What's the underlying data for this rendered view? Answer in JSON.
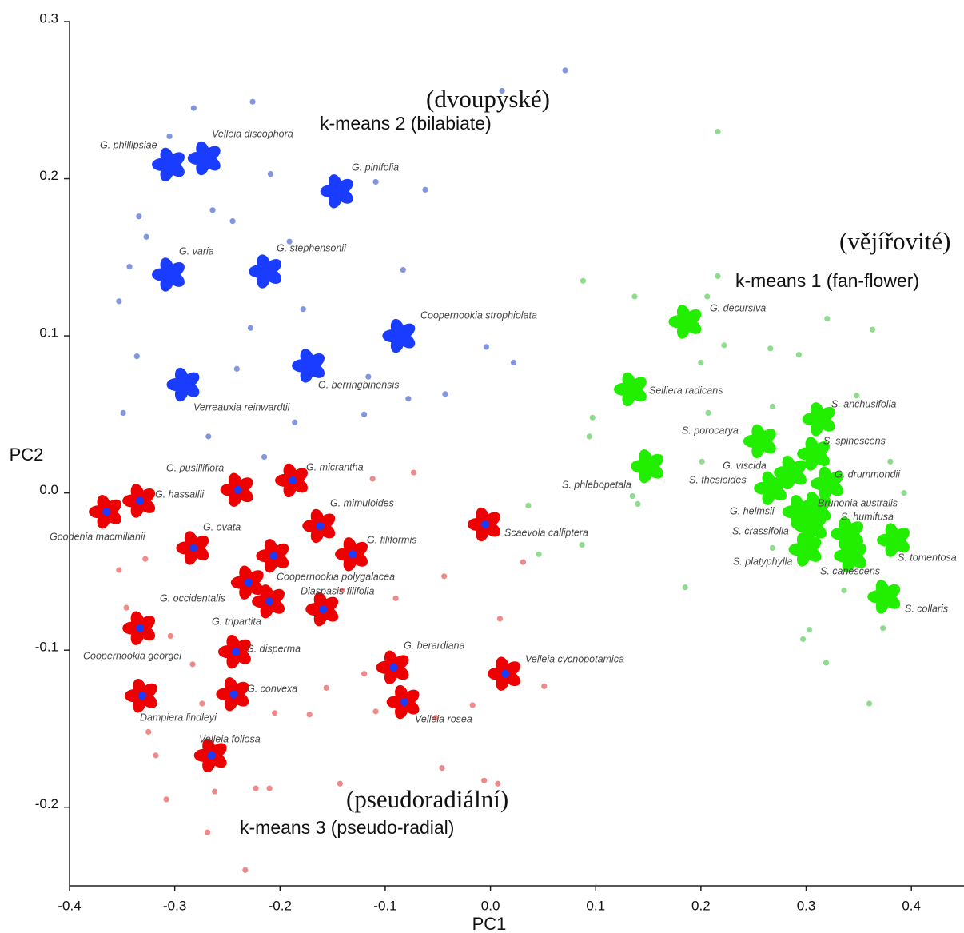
{
  "chart_data": {
    "type": "scatter",
    "x_label": "PC1",
    "y_label": "PC2",
    "xlim": [
      -0.4,
      0.45
    ],
    "ylim": [
      -0.25,
      0.3
    ],
    "xticks": [
      -0.4,
      -0.3,
      -0.2,
      -0.1,
      {
        "value": 0,
        "label": "0.0"
      },
      0.1,
      0.2,
      0.3,
      0.4
    ],
    "yticks": [
      -0.2,
      -0.1,
      {
        "value": 0,
        "label": "0.0"
      },
      0.1,
      0.2,
      0.3
    ],
    "series": [
      {
        "name": "k-means 1 (fan-flower)",
        "name_cs": "(vějířovité)",
        "color": "#8fdc8f",
        "glyph_color": "#22ee00",
        "x": [
          0.216,
          0.088,
          0.137,
          0.216,
          0.206,
          0.363,
          0.32,
          0.222,
          0.266,
          0.293,
          0.2,
          0.097,
          0.094,
          0.036,
          0.046,
          0.087,
          0.135,
          0.14,
          0.185,
          0.207,
          0.268,
          0.348,
          0.393,
          0.38,
          0.201,
          0.303,
          0.297,
          0.319,
          0.36,
          0.373,
          0.336,
          0.268
        ],
        "y": [
          0.23,
          0.135,
          0.125,
          0.138,
          0.125,
          0.104,
          0.111,
          0.094,
          0.092,
          0.088,
          0.083,
          0.048,
          0.036,
          -0.008,
          -0.039,
          -0.033,
          -0.002,
          -0.007,
          -0.06,
          0.051,
          0.055,
          0.062,
          0.0,
          0.02,
          0.02,
          -0.087,
          -0.093,
          -0.108,
          -0.134,
          -0.086,
          -0.062,
          -0.035
        ],
        "flowers": [
          {
            "name": "G. decursiva",
            "x": 0.186,
            "y": 0.109
          },
          {
            "name": "Selliera radicans",
            "x": 0.134,
            "y": 0.066
          },
          {
            "name": "S. porocarya",
            "x": 0.257,
            "y": 0.033
          },
          {
            "name": "S. phlebopetala",
            "x": 0.15,
            "y": 0.017
          },
          {
            "name": "G. viscida",
            "x": 0.286,
            "y": 0.013
          },
          {
            "name": "S. thesioides",
            "x": 0.267,
            "y": 0.003
          },
          {
            "name": "S. anchusifolia",
            "x": 0.313,
            "y": 0.047
          },
          {
            "name": "S. spinescens",
            "x": 0.308,
            "y": 0.025
          },
          {
            "name": "G. drummondii",
            "x": 0.321,
            "y": 0.006
          },
          {
            "name": "G. helmsii",
            "x": 0.294,
            "y": -0.012
          },
          {
            "name": "Brunonia australis",
            "x": 0.309,
            "y": -0.01
          },
          {
            "name": "S. humifusa",
            "x": 0.34,
            "y": -0.026
          },
          {
            "name": "S. crassifolia",
            "x": 0.305,
            "y": -0.021
          },
          {
            "name": "S. tomentosa",
            "x": 0.384,
            "y": -0.03
          },
          {
            "name": "S. platyphylla",
            "x": 0.3,
            "y": -0.036
          },
          {
            "name": "S. canescens",
            "x": 0.343,
            "y": -0.04
          },
          {
            "name": "S. collaris",
            "x": 0.375,
            "y": -0.066
          }
        ]
      },
      {
        "name": "k-means 2 (bilabiate)",
        "name_cs": "(dvoupyské)",
        "color": "#8295e2",
        "glyph_color": "#1a3cff",
        "x": [
          0.071,
          0.011,
          -0.226,
          -0.282,
          -0.305,
          -0.209,
          -0.109,
          -0.062,
          -0.334,
          -0.264,
          -0.245,
          -0.327,
          -0.191,
          -0.083,
          -0.343,
          -0.353,
          -0.178,
          -0.228,
          -0.336,
          -0.004,
          0.022,
          -0.241,
          -0.116,
          -0.078,
          -0.043,
          -0.349,
          -0.186,
          -0.12,
          -0.268,
          -0.215
        ],
        "y": [
          0.269,
          0.256,
          0.249,
          0.245,
          0.227,
          0.203,
          0.198,
          0.193,
          0.176,
          0.18,
          0.173,
          0.163,
          0.16,
          0.142,
          0.144,
          0.122,
          0.117,
          0.105,
          0.087,
          0.093,
          0.083,
          0.079,
          0.074,
          0.06,
          0.063,
          0.051,
          0.045,
          0.05,
          0.036,
          0.023
        ],
        "flowers": [
          {
            "name": "G. phillipsiae",
            "x": -0.305,
            "y": 0.209
          },
          {
            "name": "Velleia discophora",
            "x": -0.271,
            "y": 0.213
          },
          {
            "name": "G. pinifolia",
            "x": -0.145,
            "y": 0.192
          },
          {
            "name": "G. varia",
            "x": -0.305,
            "y": 0.139
          },
          {
            "name": "G. stephensonii",
            "x": -0.213,
            "y": 0.141
          },
          {
            "name": "Coopernookia strophiolata",
            "x": -0.086,
            "y": 0.1
          },
          {
            "name": "Verreauxia reinwardtii",
            "x": -0.291,
            "y": 0.069
          },
          {
            "name": "G. berringbinensis",
            "x": -0.172,
            "y": 0.081
          }
        ]
      },
      {
        "name": "k-means 3 (pseudo-radial)",
        "name_cs": "(pseudoradiální)",
        "color": "#f08a8a",
        "glyph_color": "#ee0000",
        "x": [
          -0.073,
          -0.112,
          -0.353,
          -0.328,
          -0.044,
          0.031,
          0.009,
          0.051,
          -0.017,
          -0.052,
          -0.346,
          -0.304,
          -0.283,
          -0.274,
          -0.318,
          -0.325,
          -0.308,
          -0.262,
          -0.223,
          -0.21,
          -0.269,
          -0.233,
          -0.143,
          -0.046,
          -0.006,
          0.007,
          -0.156,
          -0.172,
          -0.205,
          -0.109,
          -0.141,
          -0.09,
          -0.12
        ],
        "y": [
          0.013,
          0.009,
          -0.049,
          -0.042,
          -0.053,
          -0.044,
          -0.08,
          -0.123,
          -0.135,
          -0.143,
          -0.073,
          -0.091,
          -0.109,
          -0.134,
          -0.167,
          -0.152,
          -0.195,
          -0.19,
          -0.188,
          -0.188,
          -0.216,
          -0.24,
          -0.185,
          -0.175,
          -0.183,
          -0.185,
          -0.124,
          -0.141,
          -0.14,
          -0.139,
          -0.062,
          -0.067,
          -0.115
        ],
        "flowers": [
          {
            "name": "G. pusilliflora",
            "x": -0.24,
            "y": 0.002
          },
          {
            "name": "G. micrantha",
            "x": -0.188,
            "y": 0.008
          },
          {
            "name": "G. hassallii",
            "x": -0.333,
            "y": -0.005
          },
          {
            "name": "Goodenia macmillanii",
            "x": -0.365,
            "y": -0.012
          },
          {
            "name": "G. mimuloides",
            "x": -0.162,
            "y": -0.021
          },
          {
            "name": "G. ovata",
            "x": -0.282,
            "y": -0.035
          },
          {
            "name": "G. filiformis",
            "x": -0.131,
            "y": -0.039
          },
          {
            "name": "Coopernookia polygalacea",
            "x": -0.23,
            "y": -0.057
          },
          {
            "name": "G. occidentalis",
            "x": -0.206,
            "y": -0.04
          },
          {
            "name": "Diaspasis filifolia",
            "x": -0.159,
            "y": -0.074
          },
          {
            "name": "G. tripartita",
            "x": -0.21,
            "y": -0.069
          },
          {
            "name": "Coopernookia georgei",
            "x": -0.333,
            "y": -0.086
          },
          {
            "name": "G. disperma",
            "x": -0.242,
            "y": -0.101
          },
          {
            "name": "G. convexa",
            "x": -0.244,
            "y": -0.128
          },
          {
            "name": "Dampiera lindleyi",
            "x": -0.331,
            "y": -0.129
          },
          {
            "name": "G. berardiana",
            "x": -0.092,
            "y": -0.111
          },
          {
            "name": "Velleia rosea",
            "x": -0.082,
            "y": -0.133
          },
          {
            "name": "Velleia foliosa",
            "x": -0.265,
            "y": -0.167
          },
          {
            "name": "Scaevola calliptera",
            "x": -0.005,
            "y": -0.02
          },
          {
            "name": "Velleia cycnopotamica",
            "x": 0.014,
            "y": -0.115
          }
        ]
      }
    ]
  }
}
